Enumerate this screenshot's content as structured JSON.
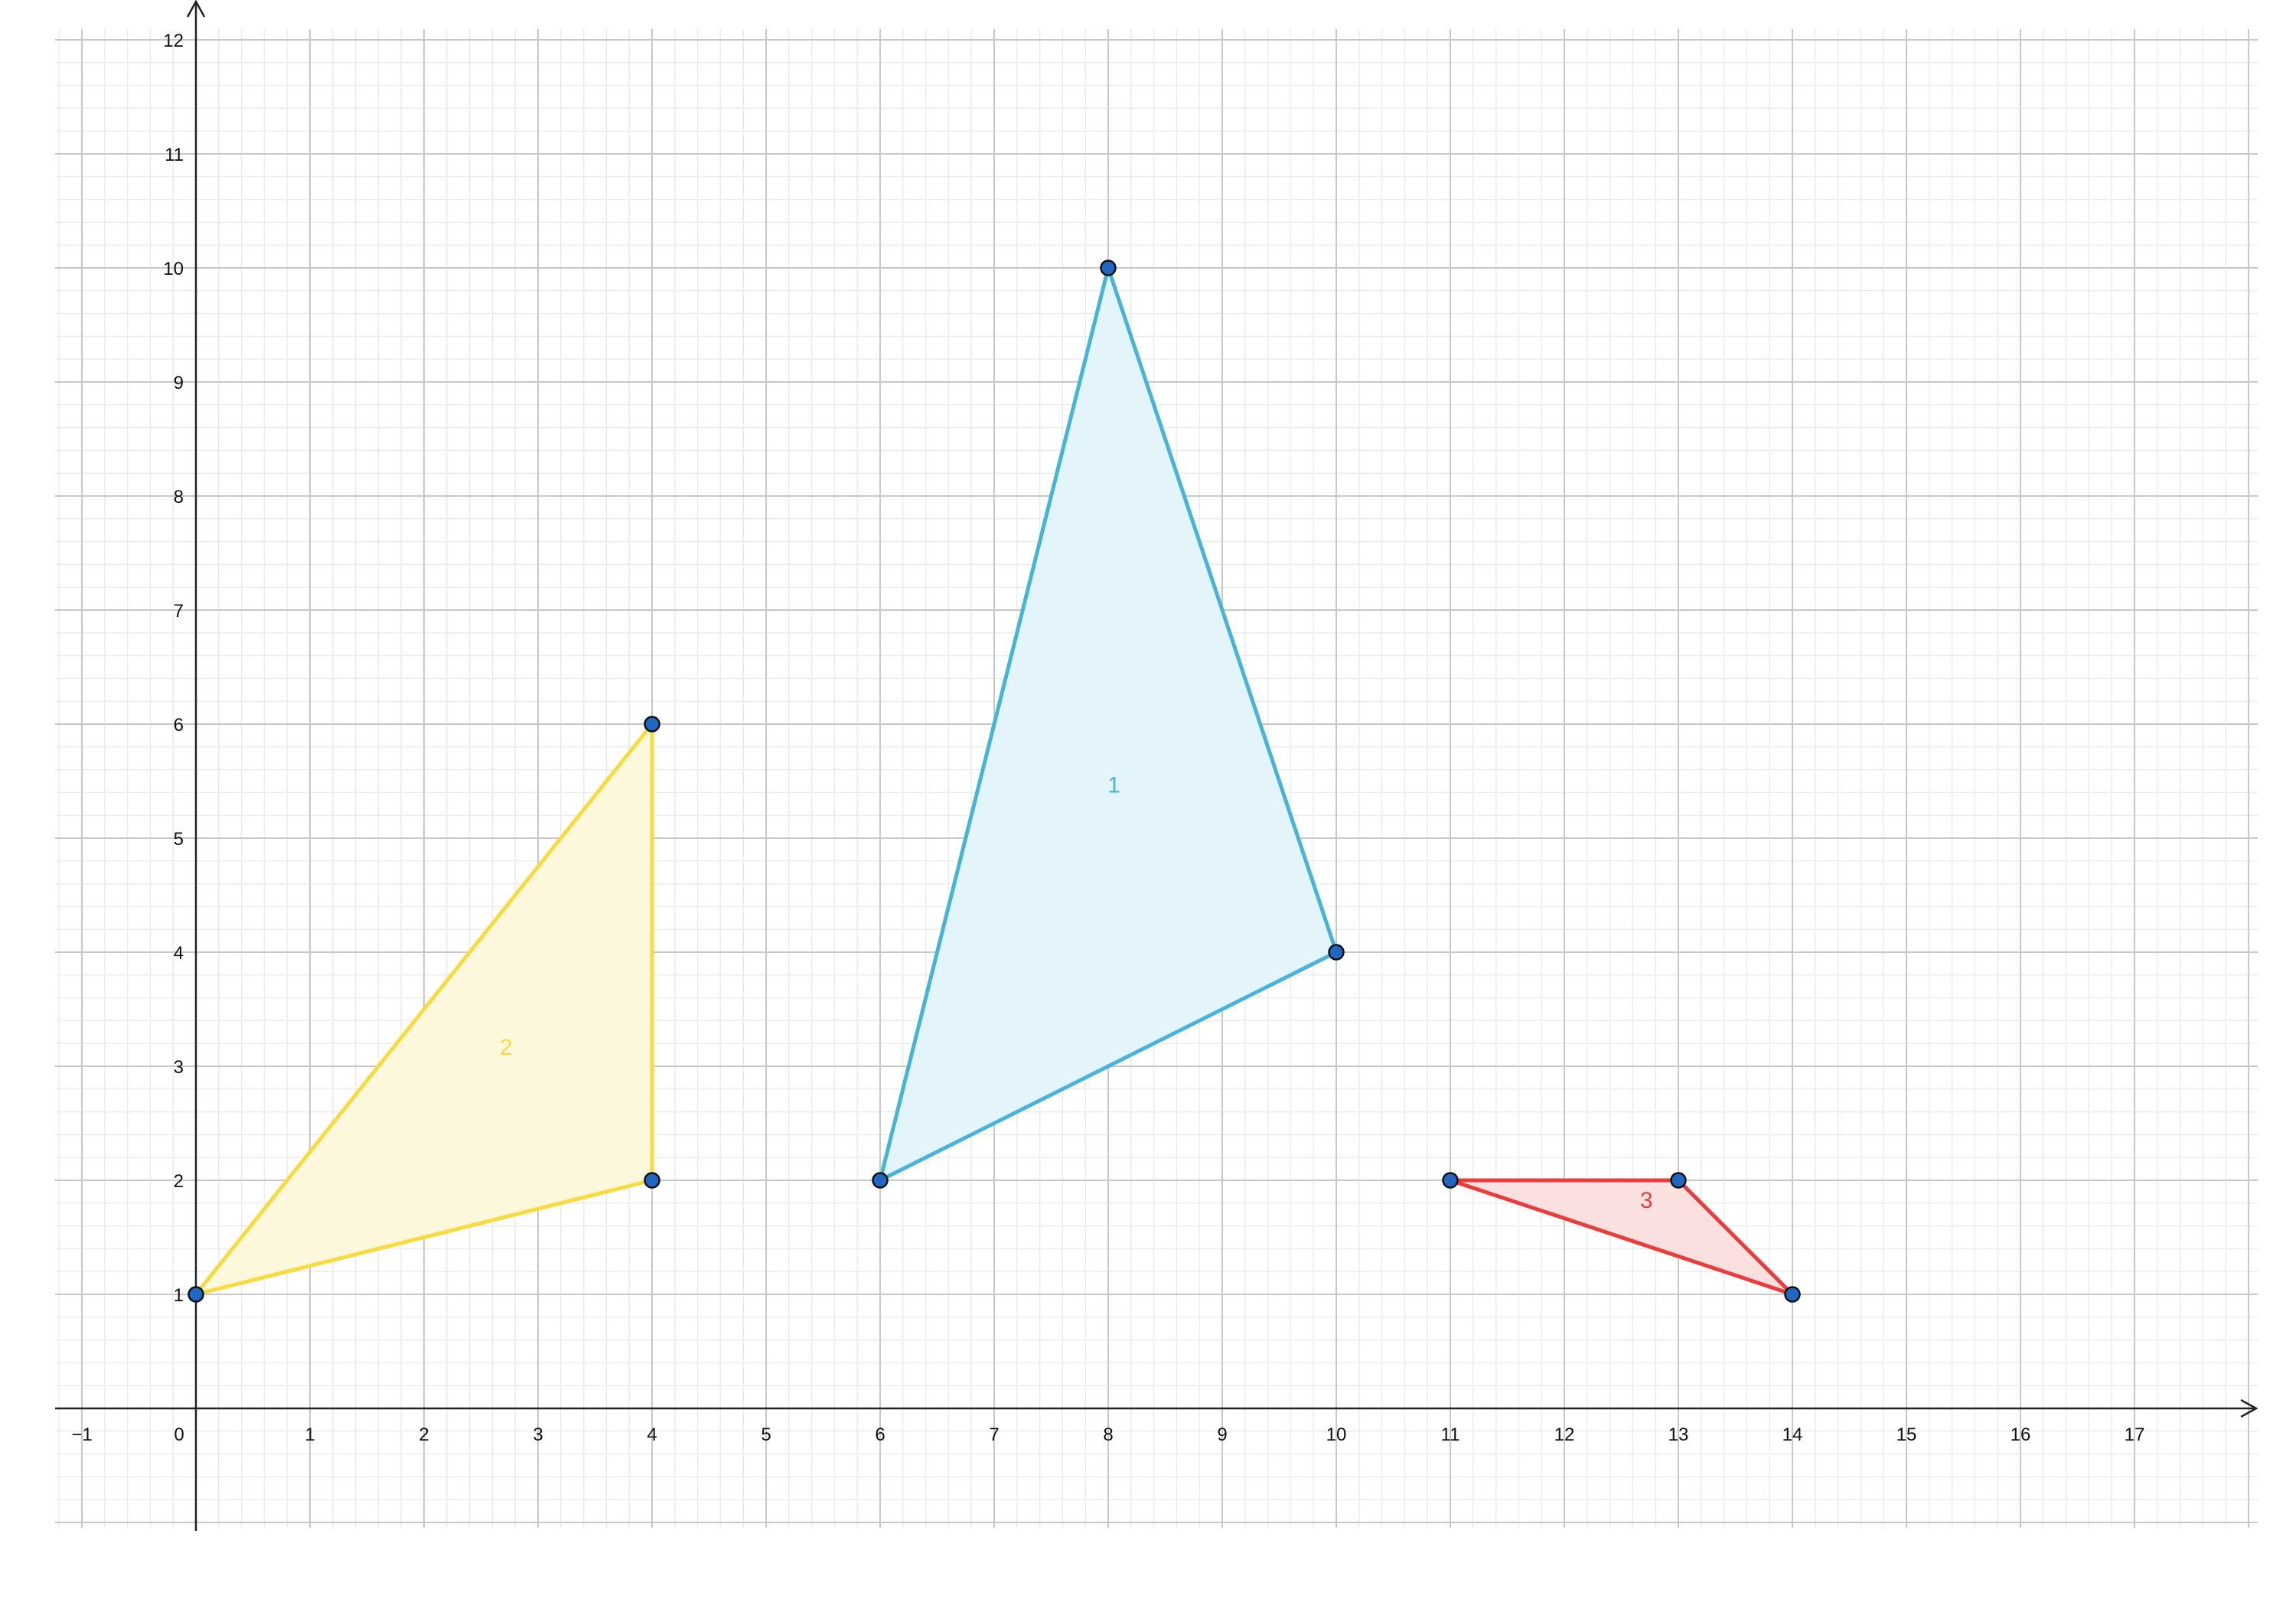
{
  "axes": {
    "x_ticks": [
      "-1",
      "0",
      "1",
      "2",
      "3",
      "4",
      "5",
      "6",
      "7",
      "8",
      "9",
      "10",
      "11",
      "12",
      "13",
      "14",
      "15",
      "16",
      "17"
    ],
    "y_ticks": [
      "1",
      "2",
      "3",
      "4",
      "5",
      "6",
      "7",
      "8",
      "9",
      "10",
      "11",
      "12"
    ],
    "x_range": [
      -1.25,
      18
    ],
    "y_range": [
      -1,
      12.4
    ]
  },
  "colors": {
    "grid_major": "#c8c8c8",
    "grid_minor": "#ececec",
    "axis": "#222222",
    "point_fill": "#1f67c3",
    "point_stroke": "#111111"
  },
  "chart_data": {
    "type": "scatter",
    "shapes": [
      {
        "label": "1",
        "stroke": "#46b4d8",
        "fill": "#e3f4fa",
        "label_pos": [
          8.05,
          5.4
        ],
        "vertices": [
          [
            8,
            10
          ],
          [
            10,
            4
          ],
          [
            6,
            2
          ]
        ]
      },
      {
        "label": "2",
        "stroke": "#f7dc3f",
        "fill": "#fdf8dc",
        "label_pos": [
          2.72,
          3.1
        ],
        "vertices": [
          [
            0,
            1
          ],
          [
            4,
            6
          ],
          [
            4,
            2
          ]
        ]
      },
      {
        "label": "3",
        "stroke": "#ec3b3b",
        "fill": "#fbe0e0",
        "label_pos": [
          12.72,
          1.76
        ],
        "vertices": [
          [
            11,
            2
          ],
          [
            13,
            2
          ],
          [
            14,
            1
          ]
        ]
      }
    ]
  }
}
